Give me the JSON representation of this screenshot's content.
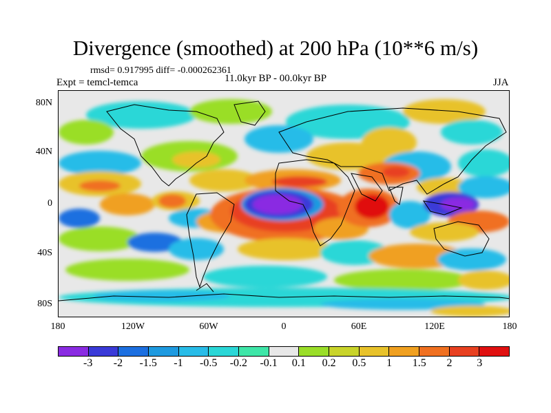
{
  "title": "Divergence (smoothed) at 200 hPa (10**6 m/s)",
  "stats": "rmsd= 0.917995 diff= -0.000262361",
  "expt": "Expt = temcl-temca",
  "period": "11.0kyr BP - 00.0kyr BP",
  "season": "JJA",
  "y_axis": [
    "80N",
    "40N",
    "0",
    "40S",
    "80S"
  ],
  "x_axis": [
    "180",
    "120W",
    "60W",
    "0",
    "60E",
    "120E",
    "180"
  ],
  "colorbar": {
    "colors": [
      "#8a2be2",
      "#3a3ad8",
      "#1c6fe0",
      "#1e9ae0",
      "#28bce8",
      "#2ad7d7",
      "#3ee6a8",
      "#e8e8e8",
      "#9ade28",
      "#c9d42a",
      "#e8c22a",
      "#f0a020",
      "#f07020",
      "#e84020",
      "#e01010"
    ],
    "labels": [
      "-3",
      "-2",
      "-1.5",
      "-1",
      "-0.5",
      "-0.2",
      "-0.1",
      "0.1",
      "0.2",
      "0.5",
      "1",
      "1.5",
      "2",
      "3"
    ]
  }
}
